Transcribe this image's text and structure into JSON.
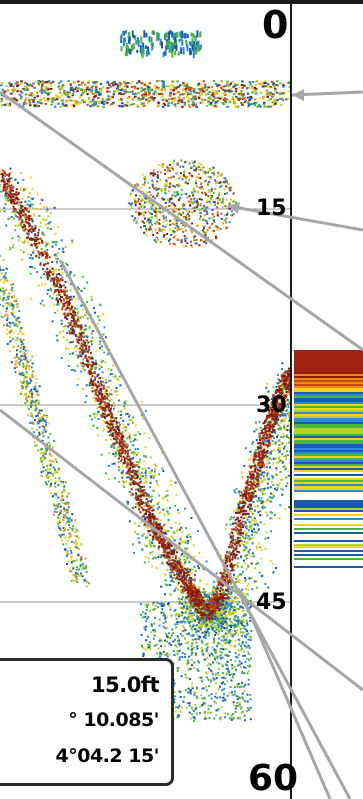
{
  "depth_scale": {
    "unit": "ft",
    "labels": [
      "0",
      "15",
      "30",
      "45",
      "60"
    ],
    "values": [
      0,
      15,
      30,
      45,
      60
    ]
  },
  "info_panel": {
    "depth": "15.0ft",
    "latitude": "° 10.085'",
    "longitude": "4°04.2 15'"
  },
  "colors": {
    "background": "#ffffff",
    "border": "#1a1a1a",
    "grid": "#9a9a9a",
    "pointer": "#a6a6a6",
    "strong_return": "#a02010",
    "echo_palette": [
      "#8c1a0c",
      "#c84a10",
      "#e88a14",
      "#f2d21a",
      "#b8d22a",
      "#48b83c",
      "#2a8ad2",
      "#1a5ab0"
    ]
  }
}
